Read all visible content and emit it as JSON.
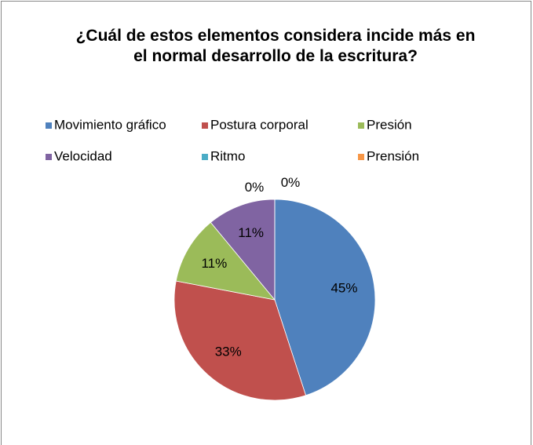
{
  "chart_data": {
    "type": "pie",
    "title": "¿Cuál de estos elementos considera incide más en el normal desarrollo de la escritura?",
    "categories": [
      "Movimiento gráfico",
      "Postura corporal",
      "Presión",
      "Velocidad",
      "Ritmo",
      "Prensión"
    ],
    "values": [
      45,
      33,
      11,
      11,
      0,
      0
    ],
    "value_labels": [
      "45%",
      "33%",
      "11%",
      "11%",
      "0%",
      "0%"
    ],
    "colors": [
      "#4f81bd",
      "#c0504d",
      "#9bbb59",
      "#8064a2",
      "#4bacc6",
      "#f79646"
    ],
    "legend": "top"
  }
}
